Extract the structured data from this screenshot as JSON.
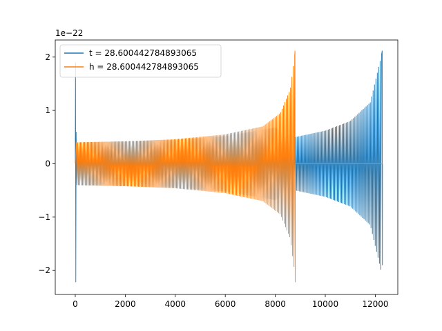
{
  "chart_data": {
    "type": "line",
    "title": "",
    "xlabel": "",
    "ylabel": "",
    "y_offset_label": "1e−22",
    "xlim": [
      -800,
      12900
    ],
    "ylim": [
      -2.45,
      2.32
    ],
    "x_ticks": [
      0,
      2000,
      4000,
      6000,
      8000,
      10000,
      12000
    ],
    "x_tick_labels": [
      "0",
      "2000",
      "4000",
      "6000",
      "8000",
      "10000",
      "12000"
    ],
    "y_ticks": [
      -2,
      -1,
      0,
      1,
      2
    ],
    "y_tick_labels": [
      "−2",
      "−1",
      "0",
      "1",
      "2"
    ],
    "grid": false,
    "legend_position": "upper-left",
    "series": [
      {
        "name": "t = 28.600442784893065",
        "color": "#1f77b4",
        "x_range": [
          0,
          12288
        ],
        "initial_spike": {
          "min": -2.22,
          "max": 1.9
        },
        "envelope": {
          "x": [
            0,
            2000,
            4000,
            6000,
            8000,
            8800,
            10000,
            11000,
            11800,
            12288
          ],
          "amp": [
            0.4,
            0.42,
            0.45,
            0.52,
            0.68,
            0.5,
            0.62,
            0.8,
            1.15,
            2.12
          ]
        },
        "final_spike": {
          "min": -1.9,
          "max": 2.12
        }
      },
      {
        "name": "h = 28.600442784893065",
        "color": "#ff7f0e",
        "x_range": [
          0,
          8800
        ],
        "envelope": {
          "x": [
            0,
            2000,
            4000,
            6000,
            7500,
            8200,
            8600,
            8800
          ],
          "amp": [
            0.4,
            0.42,
            0.46,
            0.55,
            0.7,
            0.95,
            1.4,
            2.12
          ]
        },
        "final_spike": {
          "min": -2.22,
          "max": 2.12
        },
        "flat_after": {
          "x": [
            8800,
            12288
          ],
          "y": 0
        }
      }
    ]
  }
}
